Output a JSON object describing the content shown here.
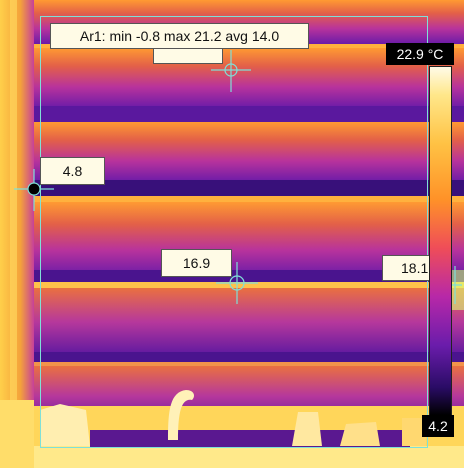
{
  "area_measurement": {
    "label": "Ar1: min -0.8 max 21.2 avg 14.0"
  },
  "spots": [
    {
      "value": "4.8"
    },
    {
      "value": "16.9"
    },
    {
      "value": "18.1"
    }
  ],
  "color_scale": {
    "max_label": "22.9 °C",
    "min_label": "4.2",
    "palette": "iron"
  }
}
